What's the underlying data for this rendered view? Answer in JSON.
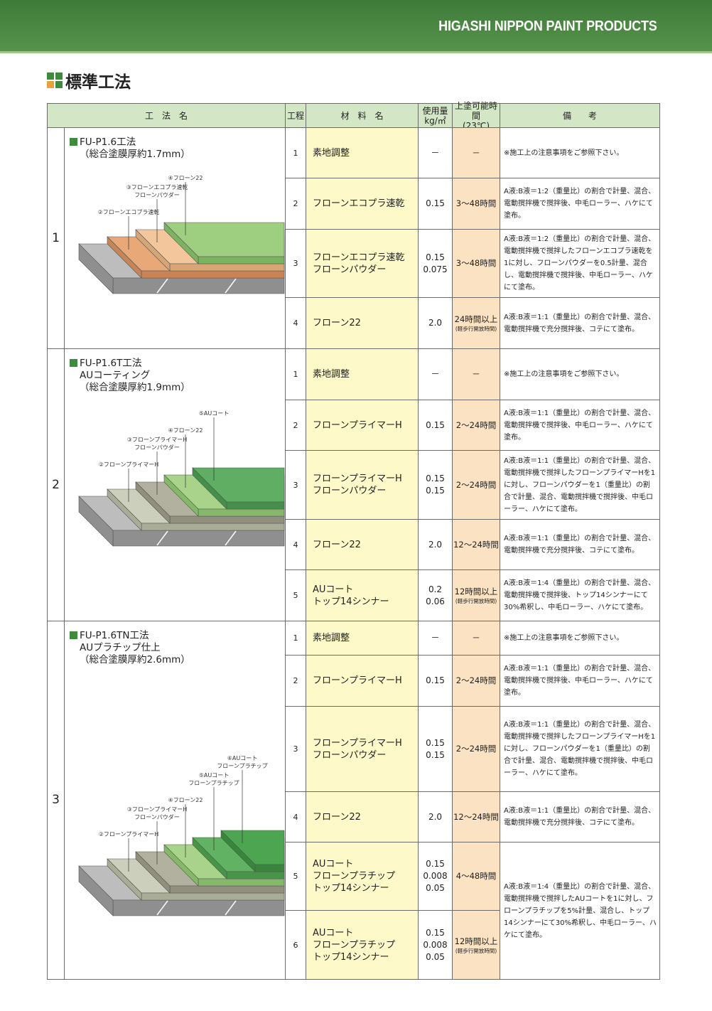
{
  "header": {
    "brand": "HIGASHI NIPPON PAINT PRODUCTS"
  },
  "title": "標準工法",
  "table": {
    "columns": [
      [
        "工　法　名"
      ],
      [
        "工程"
      ],
      [
        "材　料　名"
      ],
      [
        "使用量",
        "kg/㎡"
      ],
      [
        "上塗可能時間",
        "(23℃)"
      ],
      [
        "備　　考"
      ]
    ],
    "sections": [
      {
        "no": "1",
        "method": [
          "FU-P1.6工法",
          "（総合塗膜厚約1.7mm）"
        ],
        "labels": [
          [
            "②フローンエコプラ速乾"
          ],
          [
            "③フローンエコプラ速乾",
            "フローンパウダー"
          ],
          [
            "④フローン22"
          ]
        ],
        "steps": [
          {
            "step": "1",
            "material": [
              "素地調整"
            ],
            "usage": [
              "－"
            ],
            "time": [
              "－"
            ],
            "notes": "※施工上の注意事項をご参照下さい。"
          },
          {
            "step": "2",
            "material": [
              "フローンエコプラ速乾"
            ],
            "usage": [
              "0.15"
            ],
            "time": [
              "3～48時間"
            ],
            "notes": "A液:B液＝1:2（重量比）の割合で計量、混合、電動撹拌機で撹拌後、中毛ローラー、ハケにて塗布。"
          },
          {
            "step": "3",
            "material": [
              "フローンエコプラ速乾",
              "フローンパウダー"
            ],
            "usage": [
              "0.15",
              "0.075"
            ],
            "time": [
              "3～48時間"
            ],
            "notes": "A液:B液＝1:2（重量比）の割合で計量、混合、電動撹拌機で撹拌したフローンエコプラ速乾を1に対し、フローンパウダーを0.5計量、混合し、電動撹拌機で撹拌後、中毛ローラー、ハケにて塗布。"
          },
          {
            "step": "4",
            "material": [
              "フローン22"
            ],
            "usage": [
              "2.0"
            ],
            "time": [
              "24時間以上"
            ],
            "time_note": "(軽歩行開放時間)",
            "notes": "A液:B液＝1:1（重量比）の割合で計量、混合、電動撹拌機で充分撹拌後、コテにて塗布。"
          }
        ]
      },
      {
        "no": "2",
        "method": [
          "FU-P1.6T工法",
          "AUコーティング",
          "（総合塗膜厚約1.9mm）"
        ],
        "labels": [
          [
            "②フローンプライマーH"
          ],
          [
            "③フローンプライマーH",
            "フローンパウダー"
          ],
          [
            "④フローン22"
          ],
          [
            "⑤AUコート"
          ]
        ],
        "steps": [
          {
            "step": "1",
            "material": [
              "素地調整"
            ],
            "usage": [
              "－"
            ],
            "time": [
              "－"
            ],
            "notes": "※施工上の注意事項をご参照下さい。"
          },
          {
            "step": "2",
            "material": [
              "フローンプライマーH"
            ],
            "usage": [
              "0.15"
            ],
            "time": [
              "2～24時間"
            ],
            "notes": "A液:B液＝1:1（重量比）の割合で計量、混合、電動撹拌機で撹拌後、中毛ローラー、ハケにて塗布。"
          },
          {
            "step": "3",
            "material": [
              "フローンプライマーH",
              "フローンパウダー"
            ],
            "usage": [
              "0.15",
              "0.15"
            ],
            "time": [
              "2～24時間"
            ],
            "notes": "A液:B液＝1:1（重量比）の割合で計量、混合、電動撹拌機で撹拌したフローンプライマーHを1に対し、フローンパウダーを1（重量比）の割合で計量、混合、電動撹拌機で撹拌後、中毛ローラー、ハケにて塗布。"
          },
          {
            "step": "4",
            "material": [
              "フローン22"
            ],
            "usage": [
              "2.0"
            ],
            "time": [
              "12～24時間"
            ],
            "notes": "A液:B液＝1:1（重量比）の割合で計量、混合、電動撹拌機で充分撹拌後、コテにて塗布。"
          },
          {
            "step": "5",
            "material": [
              "AUコート",
              "トップ14シンナー"
            ],
            "usage": [
              "0.2",
              "0.06"
            ],
            "time": [
              "12時間以上"
            ],
            "time_note": "(軽歩行開放時間)",
            "notes": "A液:B液＝1:4（重量比）の割合で計量、混合、電動撹拌機で撹拌後、トップ14シンナーにて30%希釈し、中毛ローラー、ハケにて塗布。"
          }
        ]
      },
      {
        "no": "3",
        "method": [
          "FU-P1.6TN工法",
          "AUプラチップ仕上",
          "（総合塗膜厚約2.6mm）"
        ],
        "labels": [
          [
            "②フローンプライマーH"
          ],
          [
            "③フローンプライマーH",
            "フローンパウダー"
          ],
          [
            "④フローン22"
          ],
          [
            "⑤AUコート",
            "フローンプラチップ"
          ],
          [
            "⑥AUコート",
            "フローンプラチップ"
          ]
        ],
        "steps": [
          {
            "step": "1",
            "material": [
              "素地調整"
            ],
            "usage": [
              "－"
            ],
            "time": [
              "－"
            ],
            "notes": "※施工上の注意事項をご参照下さい。"
          },
          {
            "step": "2",
            "material": [
              "フローンプライマーH"
            ],
            "usage": [
              "0.15"
            ],
            "time": [
              "2～24時間"
            ],
            "notes": "A液:B液＝1:1（重量比）の割合で計量、混合、電動撹拌機で撹拌後、中毛ローラー、ハケにて塗布。"
          },
          {
            "step": "3",
            "material": [
              "フローンプライマーH",
              "フローンパウダー"
            ],
            "usage": [
              "0.15",
              "0.15"
            ],
            "time": [
              "2～24時間"
            ],
            "notes": "A液:B液＝1:1（重量比）の割合で計量、混合、電動撹拌機で撹拌したフローンプライマーHを1に対し、フローンパウダーを1（重量比）の割合で計量、混合、電動撹拌機で撹拌後、中毛ローラー、ハケにて塗布。"
          },
          {
            "step": "4",
            "material": [
              "フローン22"
            ],
            "usage": [
              "2.0"
            ],
            "time": [
              "12～24時間"
            ],
            "notes": "A液:B液＝1:1（重量比）の割合で計量、混合、電動撹拌機で充分撹拌後、コテにて塗布。"
          },
          {
            "step": "5",
            "material": [
              "AUコート",
              "フローンプラチップ",
              "トップ14シンナー"
            ],
            "usage": [
              "0.15",
              "0.008",
              "0.05"
            ],
            "time": [
              "4～48時間"
            ],
            "notes": "A液:B液＝1:4（重量比）の割合で計量、混合、電動撹拌機で撹拌したAUコートを1に対し、フローンプラチップを5%計量、混合し、トップ14シンナーにて30%希釈し、中毛ローラー、ハケにて塗布。"
          },
          {
            "step": "6",
            "material": [
              "AUコート",
              "フローンプラチップ",
              "トップ14シンナー"
            ],
            "usage": [
              "0.15",
              "0.008",
              "0.05"
            ],
            "time": [
              "12時間以上"
            ],
            "time_note": "(軽歩行開放時間)"
          }
        ]
      }
    ]
  }
}
